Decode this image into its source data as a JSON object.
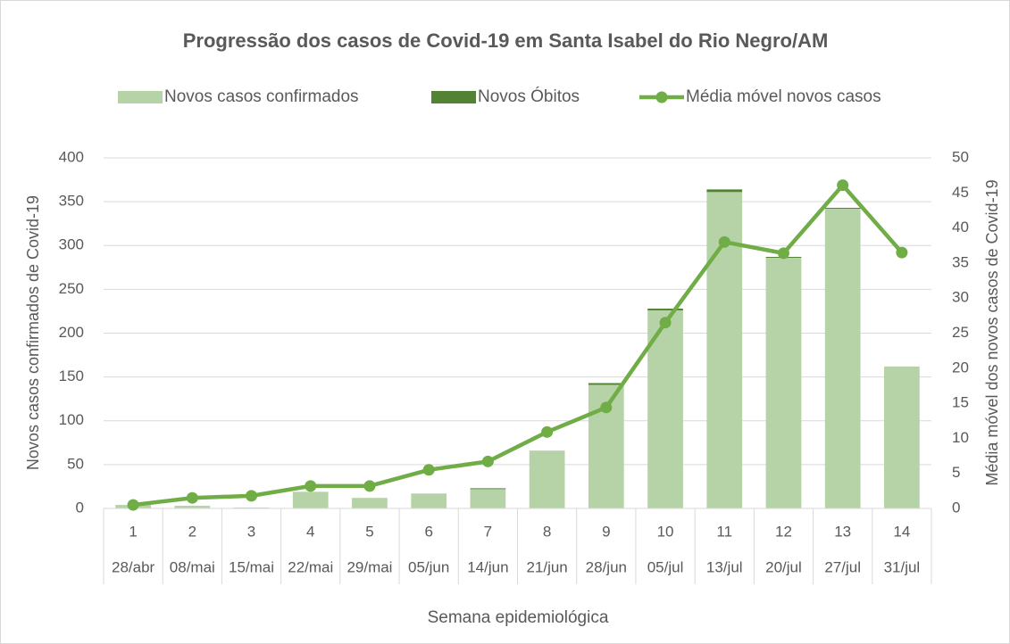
{
  "chart_data": {
    "type": "bar",
    "title": "Progressão dos casos de Covid-19 em Santa Isabel do Rio Negro/AM",
    "x_label": "Semana epidemiológica",
    "y_label": "Novos casos confirmados de Covid-19",
    "y2_label": "Média móvel dos novos casos de Covid-19",
    "categories": [
      "1",
      "2",
      "3",
      "4",
      "5",
      "6",
      "7",
      "8",
      "9",
      "10",
      "11",
      "12",
      "13",
      "14"
    ],
    "category_dates": [
      "28/abr",
      "08/mai",
      "15/mai",
      "22/mai",
      "29/mai",
      "05/jun",
      "14/jun",
      "21/jun",
      "28/jun",
      "05/jul",
      "13/jul",
      "20/jul",
      "27/jul",
      "31/jul"
    ],
    "series": [
      {
        "name": "Novos casos confirmados",
        "type": "bar",
        "color": "#b5d3a6",
        "values": [
          4,
          3,
          1,
          19,
          12,
          17,
          22,
          66,
          141,
          226,
          361,
          286,
          342,
          162
        ]
      },
      {
        "name": "Novos Óbitos",
        "type": "bar",
        "color": "#548235",
        "values": [
          0,
          0,
          0,
          0,
          0,
          0,
          1,
          0,
          2,
          2,
          3,
          1,
          1,
          0
        ]
      },
      {
        "name": "Média móvel novos casos",
        "type": "line",
        "axis": "y2",
        "color": "#70ad47",
        "values": [
          0.5,
          1.5,
          1.8,
          3.2,
          3.2,
          5.5,
          6.7,
          10.9,
          14.4,
          26.5,
          38,
          36.4,
          46.1,
          36.5
        ]
      }
    ],
    "ylim": [
      0,
      400
    ],
    "yticks": [
      0,
      50,
      100,
      150,
      200,
      250,
      300,
      350,
      400
    ],
    "y2lim": [
      0,
      50
    ],
    "y2ticks": [
      0,
      5,
      10,
      15,
      20,
      25,
      30,
      35,
      40,
      45,
      50
    ],
    "grid": true,
    "legend": "top"
  }
}
